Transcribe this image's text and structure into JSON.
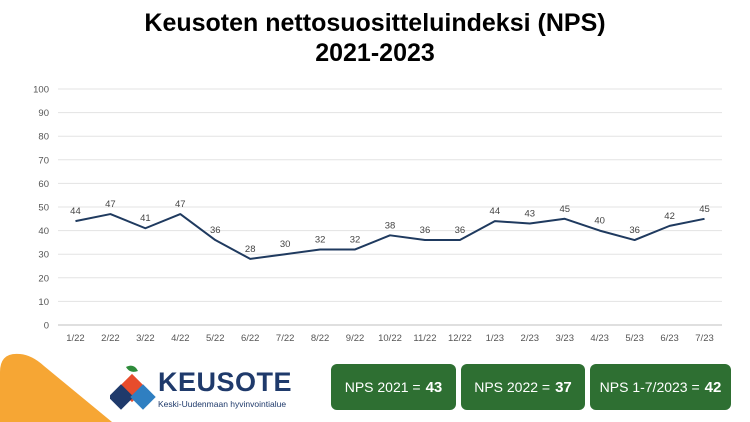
{
  "title_line1": "Keusoten nettosuositteluindeksi (NPS)",
  "title_line2": "2021-2023",
  "chart_data": {
    "type": "line",
    "title": "Keusoten nettosuositteluindeksi (NPS) 2021-2023",
    "categories": [
      "1/22",
      "2/22",
      "3/22",
      "4/22",
      "5/22",
      "6/22",
      "7/22",
      "8/22",
      "9/22",
      "10/22",
      "11/22",
      "12/22",
      "1/23",
      "2/23",
      "3/23",
      "4/23",
      "5/23",
      "6/23",
      "7/23"
    ],
    "values": [
      44,
      47,
      41,
      47,
      36,
      28,
      30,
      32,
      32,
      38,
      36,
      36,
      44,
      43,
      45,
      40,
      36,
      42,
      45
    ],
    "yticks": [
      0,
      10,
      20,
      30,
      40,
      50,
      60,
      70,
      80,
      90,
      100
    ],
    "ylim": [
      0,
      100
    ],
    "xlabel": "",
    "ylabel": "",
    "grid": true,
    "line_color": "#1f3a5f"
  },
  "logo": {
    "name": "KEUSOTE",
    "subtitle": "Keski-Uudenmaan hyvinvointialue"
  },
  "nps_boxes": [
    {
      "label": "NPS 2021 =",
      "value": "43"
    },
    {
      "label": "NPS 2022 =",
      "value": "37"
    },
    {
      "label": "NPS 1-7/2023 =",
      "value": "42"
    }
  ],
  "colors": {
    "box_green": "#2e6f32",
    "corner_orange": "#f6a634",
    "logo_blue": "#1f3a6b"
  }
}
